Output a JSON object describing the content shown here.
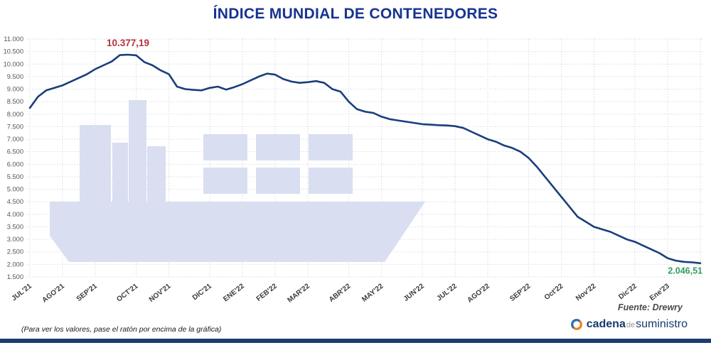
{
  "title": "ÍNDICE MUNDIAL DE CONTENEDORES",
  "footer": {
    "note": "(Para ver los valores, pase el ratón por encima de la gráfica)",
    "source": "Fuente: Drewry",
    "logo": {
      "part1": "cadena",
      "part2": "de",
      "part3": "suministro"
    }
  },
  "colors": {
    "title": "#17338f",
    "line": "#1a3e7d",
    "peak_label": "#b5323e",
    "end_label": "#2f9e5f",
    "watermark": "#d9def1",
    "footer_bar": "#1d3c6e",
    "logo_orange": "#ee7f1b",
    "logo_blue": "#2b6cb0"
  },
  "chart_data": {
    "type": "line",
    "title": "ÍNDICE MUNDIAL DE CONTENEDORES",
    "ylim": [
      1500,
      11000
    ],
    "grid": "dotted",
    "legend": "none",
    "yticks": [
      {
        "value": 11000,
        "label": "11.000"
      },
      {
        "value": 10500,
        "label": "10.500"
      },
      {
        "value": 10000,
        "label": "10.000"
      },
      {
        "value": 9500,
        "label": "9.500"
      },
      {
        "value": 9000,
        "label": "9.000"
      },
      {
        "value": 8500,
        "label": "8.500"
      },
      {
        "value": 8000,
        "label": "8.000"
      },
      {
        "value": 7500,
        "label": "7.500"
      },
      {
        "value": 7000,
        "label": "7.000"
      },
      {
        "value": 6500,
        "label": "6.500"
      },
      {
        "value": 6000,
        "label": "6.000"
      },
      {
        "value": 5500,
        "label": "5.500"
      },
      {
        "value": 5000,
        "label": "5.000"
      },
      {
        "value": 4500,
        "label": "4.500"
      },
      {
        "value": 4000,
        "label": "4.000"
      },
      {
        "value": 3500,
        "label": "3.500"
      },
      {
        "value": 3000,
        "label": "3.000"
      },
      {
        "value": 2500,
        "label": "2.500"
      },
      {
        "value": 2000,
        "label": "2.000"
      },
      {
        "value": 1500,
        "label": "1.500"
      }
    ],
    "months": [
      "JUL'21",
      "AGO'21",
      "SEP'21",
      "OCT'21",
      "NOV'21",
      "DIC'21",
      "ENE'22",
      "FEB'22",
      "MAR'22",
      "ABR'22",
      "MAY'22",
      "JUN'22",
      "JUL'22",
      "AGO'22",
      "SEP'22",
      "Oct'22",
      "Nov'22",
      "Dic'22",
      "Ene'23"
    ],
    "month_start_index": [
      0,
      4,
      8,
      13,
      17,
      22,
      26,
      30,
      34,
      39,
      43,
      48,
      52,
      56,
      61,
      65,
      69,
      74,
      78
    ],
    "values": [
      8250,
      8700,
      8950,
      9050,
      9150,
      9300,
      9450,
      9600,
      9800,
      9950,
      10100,
      10360,
      10377.19,
      10350,
      10080,
      9950,
      9750,
      9600,
      9100,
      9000,
      8970,
      8950,
      9050,
      9100,
      8980,
      9080,
      9200,
      9350,
      9500,
      9620,
      9580,
      9400,
      9300,
      9250,
      9280,
      9320,
      9250,
      9000,
      8900,
      8500,
      8200,
      8100,
      8050,
      7900,
      7800,
      7750,
      7700,
      7650,
      7600,
      7580,
      7560,
      7550,
      7520,
      7450,
      7300,
      7150,
      7000,
      6900,
      6750,
      6650,
      6500,
      6250,
      5900,
      5500,
      5100,
      4700,
      4300,
      3900,
      3700,
      3500,
      3400,
      3300,
      3150,
      3000,
      2900,
      2750,
      2600,
      2450,
      2250,
      2150,
      2100,
      2080,
      2046.51
    ],
    "peak_label": "10.377,19",
    "peak_value": 10377.19,
    "end_label": "2.046,51",
    "end_value": 2046.51
  }
}
